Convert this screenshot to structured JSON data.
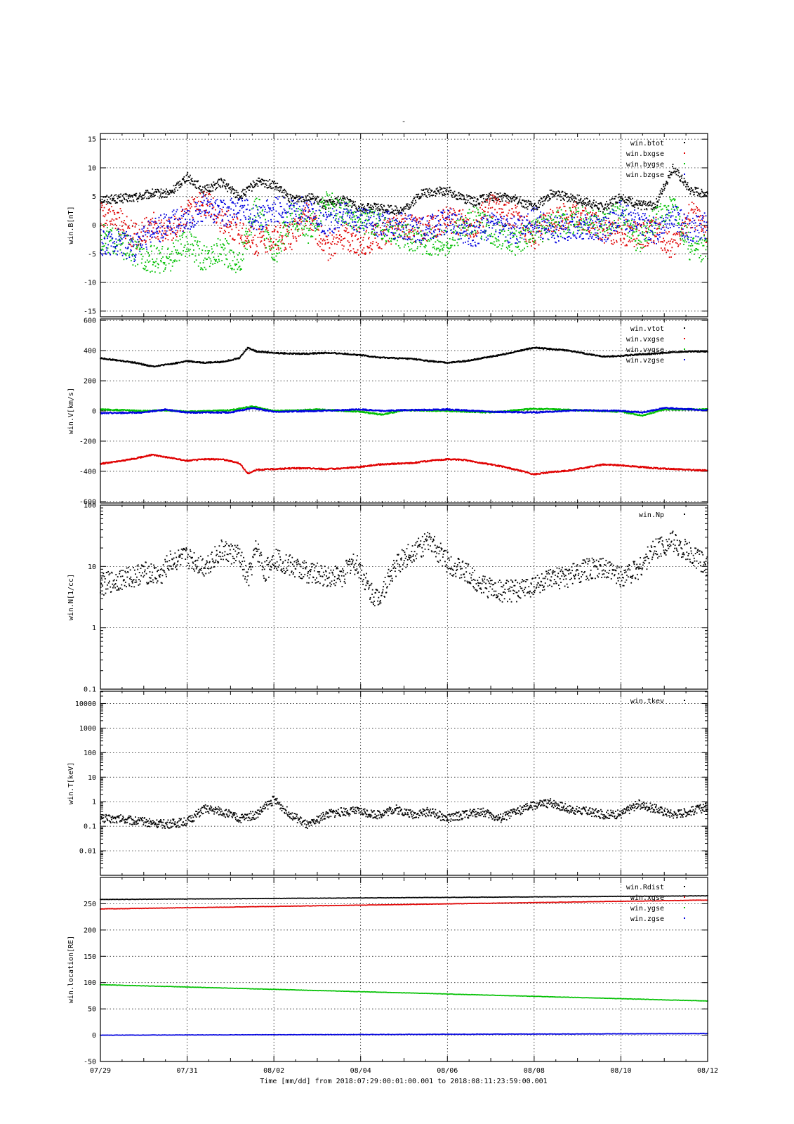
{
  "title": "-",
  "xlabel": "Time [mm/dd]  from 2018:07:29:00:01:00.001  to  2018:08:11:23:59:00.001",
  "x_ticks": [
    "07/29",
    "07/31",
    "08/02",
    "08/04",
    "08/06",
    "08/08",
    "08/10",
    "08/12"
  ],
  "chart_data": [
    {
      "type": "scatter",
      "title": "",
      "ylabel": "win.B[nT]",
      "ylim": [
        -15,
        15
      ],
      "y_ticks": [
        "15",
        "10",
        "5",
        "0",
        "-5",
        "-10",
        "-15"
      ],
      "grid": true,
      "legend": "top-right",
      "x_unit": "days since 07/29 00:00",
      "series": [
        {
          "name": "win.btot",
          "color": "#000000",
          "x": [
            0,
            0.4,
            0.8,
            1.2,
            1.6,
            1.8,
            2.0,
            2.4,
            2.8,
            3.2,
            3.4,
            3.6,
            4.0,
            4.4,
            4.8,
            5.2,
            5.6,
            6.0,
            6.4,
            7.0,
            7.4,
            8.0,
            8.6,
            9.0,
            9.6,
            10.0,
            10.4,
            11.0,
            11.6,
            12.0,
            12.4,
            12.8,
            13.2,
            13.6,
            14.0
          ],
          "values": [
            4.5,
            4.6,
            4.8,
            5.5,
            5.5,
            7.0,
            8.5,
            6.0,
            7.5,
            5.0,
            6.0,
            7.5,
            7.0,
            4.5,
            5.0,
            3.5,
            4.5,
            3.0,
            3.0,
            2.5,
            5.5,
            6.0,
            4.0,
            5.0,
            4.5,
            3.0,
            5.5,
            4.5,
            3.0,
            5.0,
            3.5,
            3.5,
            10.0,
            6.0,
            5.5
          ]
        },
        {
          "name": "win.bxgse",
          "color": "#e00000",
          "x": [
            0,
            0.4,
            0.8,
            1.2,
            1.6,
            2.0,
            2.4,
            2.8,
            3.2,
            3.6,
            4.0,
            4.4,
            4.8,
            5.2,
            5.6,
            6.0,
            6.4,
            7.0,
            7.4,
            8.0,
            8.6,
            9.0,
            9.6,
            10.0,
            10.4,
            11.0,
            11.6,
            12.0,
            12.4,
            12.8,
            13.2,
            13.6,
            14.0
          ],
          "values": [
            2,
            1,
            -2,
            0,
            -1,
            2,
            4,
            1,
            -1,
            -3,
            -2,
            -2,
            2,
            -4,
            -2,
            -3,
            -2,
            0,
            -1,
            1,
            0,
            3,
            1,
            -2,
            1,
            2,
            -1,
            -1,
            -2,
            -1,
            -4,
            2,
            -1
          ]
        },
        {
          "name": "win.bygse",
          "color": "#00c000",
          "x": [
            0,
            0.4,
            0.8,
            1.2,
            1.6,
            2.0,
            2.4,
            2.8,
            3.2,
            3.6,
            4.0,
            4.4,
            4.8,
            5.2,
            5.6,
            6.0,
            6.4,
            7.0,
            7.4,
            8.0,
            8.6,
            9.0,
            9.6,
            10.0,
            10.4,
            11.0,
            11.6,
            12.0,
            12.4,
            12.8,
            13.2,
            13.6,
            14.0
          ],
          "values": [
            -2,
            -3,
            -5,
            -6,
            -6,
            -3,
            -6,
            -4,
            -7,
            4,
            -6,
            2,
            -1,
            4,
            2,
            1,
            0,
            -2,
            -3,
            -3,
            1,
            -1,
            -3,
            -1,
            0,
            1,
            0,
            2,
            -3,
            1,
            3,
            -4,
            -4
          ]
        },
        {
          "name": "win.bzgse",
          "color": "#0000e0",
          "x": [
            0,
            0.4,
            0.8,
            1.2,
            1.6,
            2.0,
            2.4,
            2.8,
            3.2,
            3.6,
            4.0,
            4.4,
            4.8,
            5.2,
            5.6,
            6.0,
            6.4,
            7.0,
            7.4,
            8.0,
            8.6,
            9.0,
            9.6,
            10.0,
            10.4,
            11.0,
            11.6,
            12.0,
            12.4,
            12.8,
            13.2,
            13.6,
            14.0
          ],
          "values": [
            -3,
            -3,
            -4,
            -1,
            0,
            1,
            3,
            2,
            3,
            1,
            3,
            2,
            3,
            0,
            2,
            1,
            0,
            0,
            -1,
            1,
            -2,
            0,
            -1,
            1,
            -1,
            0,
            -1,
            2,
            0,
            -1,
            2,
            -1,
            0
          ]
        }
      ]
    },
    {
      "type": "scatter",
      "title": "",
      "ylabel": "win.V[km/s]",
      "ylim": [
        -600,
        600
      ],
      "y_ticks": [
        "600",
        "400",
        "200",
        "0",
        "-200",
        "-400",
        "-600"
      ],
      "grid": true,
      "legend": "top-right",
      "x_unit": "days since 07/29 00:00",
      "series": [
        {
          "name": "win.vtot",
          "color": "#000000",
          "x": [
            0,
            0.4,
            0.8,
            1.2,
            1.6,
            2.0,
            2.4,
            2.8,
            3.2,
            3.4,
            3.6,
            4.0,
            4.4,
            4.8,
            5.2,
            5.6,
            6.0,
            6.4,
            6.8,
            7.2,
            7.6,
            8.0,
            8.4,
            8.8,
            9.2,
            9.6,
            10.0,
            10.4,
            10.8,
            11.2,
            11.6,
            12.0,
            12.4,
            12.8,
            13.2,
            13.6,
            14.0
          ],
          "values": [
            350,
            335,
            320,
            295,
            310,
            330,
            320,
            325,
            350,
            420,
            395,
            385,
            380,
            380,
            385,
            380,
            370,
            355,
            350,
            345,
            330,
            320,
            330,
            350,
            370,
            395,
            420,
            410,
            400,
            380,
            360,
            365,
            375,
            380,
            390,
            395,
            395
          ]
        },
        {
          "name": "win.vxgse",
          "color": "#e00000",
          "x": [
            0,
            0.4,
            0.8,
            1.2,
            1.6,
            2.0,
            2.4,
            2.8,
            3.2,
            3.4,
            3.6,
            4.0,
            4.4,
            4.8,
            5.2,
            5.6,
            6.0,
            6.4,
            6.8,
            7.2,
            7.6,
            8.0,
            8.4,
            8.8,
            9.2,
            9.6,
            10.0,
            10.4,
            10.8,
            11.2,
            11.6,
            12.0,
            12.4,
            12.8,
            13.2,
            13.6,
            14.0
          ],
          "values": [
            -350,
            -335,
            -315,
            -290,
            -310,
            -330,
            -320,
            -320,
            -345,
            -415,
            -390,
            -385,
            -380,
            -380,
            -385,
            -380,
            -370,
            -355,
            -350,
            -345,
            -330,
            -320,
            -325,
            -345,
            -365,
            -390,
            -420,
            -405,
            -395,
            -375,
            -355,
            -360,
            -370,
            -380,
            -385,
            -390,
            -395
          ]
        },
        {
          "name": "win.vygse",
          "color": "#00c000",
          "x": [
            0,
            1,
            1.5,
            2,
            3,
            3.5,
            4,
            5,
            6,
            6.5,
            7,
            8,
            9,
            10,
            11,
            12,
            12.5,
            13,
            14
          ],
          "values": [
            10,
            0,
            5,
            -5,
            5,
            30,
            0,
            10,
            -5,
            -25,
            5,
            0,
            -10,
            15,
            5,
            -5,
            -30,
            10,
            10
          ]
        },
        {
          "name": "win.vzgse",
          "color": "#0000e0",
          "x": [
            0,
            1,
            1.5,
            2,
            3,
            3.5,
            4,
            5,
            6,
            6.5,
            7,
            8,
            9,
            10,
            11,
            12,
            12.5,
            13,
            14
          ],
          "values": [
            -15,
            -10,
            10,
            -10,
            -10,
            20,
            -5,
            0,
            10,
            0,
            5,
            10,
            -5,
            -10,
            5,
            0,
            -10,
            20,
            5
          ]
        }
      ]
    },
    {
      "type": "scatter",
      "title": "",
      "ylabel": "win.N[1/cc]",
      "ylim": [
        0.1,
        100
      ],
      "yscale": "log",
      "y_ticks": [
        "100",
        "10",
        "1",
        "0.1"
      ],
      "grid": true,
      "legend": "top-right",
      "x_unit": "days since 07/29 00:00",
      "series": [
        {
          "name": "win.Np",
          "color": "#000000",
          "x": [
            0,
            0.4,
            0.8,
            1.0,
            1.4,
            1.6,
            2.0,
            2.4,
            2.8,
            3.2,
            3.4,
            3.6,
            3.8,
            4.0,
            4.4,
            4.8,
            5.2,
            5.6,
            5.8,
            6.0,
            6.2,
            6.4,
            6.8,
            7.2,
            7.6,
            8.0,
            8.4,
            8.8,
            9.2,
            9.6,
            10.0,
            10.4,
            10.8,
            11.2,
            11.6,
            12.0,
            12.4,
            12.8,
            13.2,
            13.6,
            14.0
          ],
          "values": [
            5,
            6,
            7,
            8,
            7,
            12,
            14,
            10,
            18,
            15,
            6,
            20,
            8,
            14,
            10,
            8,
            7,
            7,
            12,
            9,
            4,
            3,
            10,
            18,
            25,
            12,
            8,
            5,
            4,
            4,
            5,
            6,
            7,
            9,
            9,
            7,
            9,
            20,
            25,
            16,
            10
          ]
        }
      ]
    },
    {
      "type": "scatter",
      "title": "",
      "ylabel": "win.T[keV]",
      "ylim": [
        0.001,
        30000
      ],
      "yscale": "log",
      "y_ticks": [
        "10000",
        "1000",
        "100",
        "10",
        "1",
        "0.1",
        "0.01"
      ],
      "grid": true,
      "legend": "top-right",
      "x_unit": "days since 07/29 00:00",
      "series": [
        {
          "name": "win.tkev",
          "color": "#000000",
          "x": [
            0,
            0.5,
            1,
            1.5,
            2,
            2.4,
            2.8,
            3.2,
            3.6,
            4.0,
            4.4,
            4.8,
            5.2,
            5.6,
            6.0,
            6.4,
            6.8,
            7.2,
            7.6,
            8.0,
            8.4,
            8.8,
            9.2,
            9.6,
            10.0,
            10.4,
            10.8,
            11.2,
            11.6,
            12.0,
            12.4,
            12.8,
            13.2,
            13.6,
            14.0
          ],
          "values": [
            0.2,
            0.2,
            0.15,
            0.12,
            0.15,
            0.5,
            0.4,
            0.2,
            0.3,
            1.2,
            0.3,
            0.1,
            0.3,
            0.4,
            0.4,
            0.3,
            0.5,
            0.3,
            0.4,
            0.2,
            0.3,
            0.4,
            0.2,
            0.4,
            0.7,
            0.9,
            0.5,
            0.4,
            0.3,
            0.3,
            0.8,
            0.5,
            0.3,
            0.4,
            0.6
          ]
        }
      ]
    },
    {
      "type": "scatter",
      "title": "",
      "ylabel": "win.location[RE]",
      "ylim": [
        -50,
        300
      ],
      "y_ticks": [
        "250",
        "200",
        "150",
        "100",
        "50",
        "0",
        "-50"
      ],
      "grid": true,
      "legend": "top-right",
      "x_unit": "days since 07/29 00:00",
      "series": [
        {
          "name": "win.Rdist",
          "color": "#000000",
          "x": [
            0,
            14
          ],
          "values": [
            258,
            265
          ]
        },
        {
          "name": "win.xgse",
          "color": "#e00000",
          "x": [
            0,
            14
          ],
          "values": [
            240,
            257
          ]
        },
        {
          "name": "win.ygse",
          "color": "#00c000",
          "x": [
            0,
            14
          ],
          "values": [
            96,
            65
          ]
        },
        {
          "name": "win.zgse",
          "color": "#0000e0",
          "x": [
            0,
            14
          ],
          "values": [
            0,
            3
          ]
        }
      ]
    }
  ]
}
